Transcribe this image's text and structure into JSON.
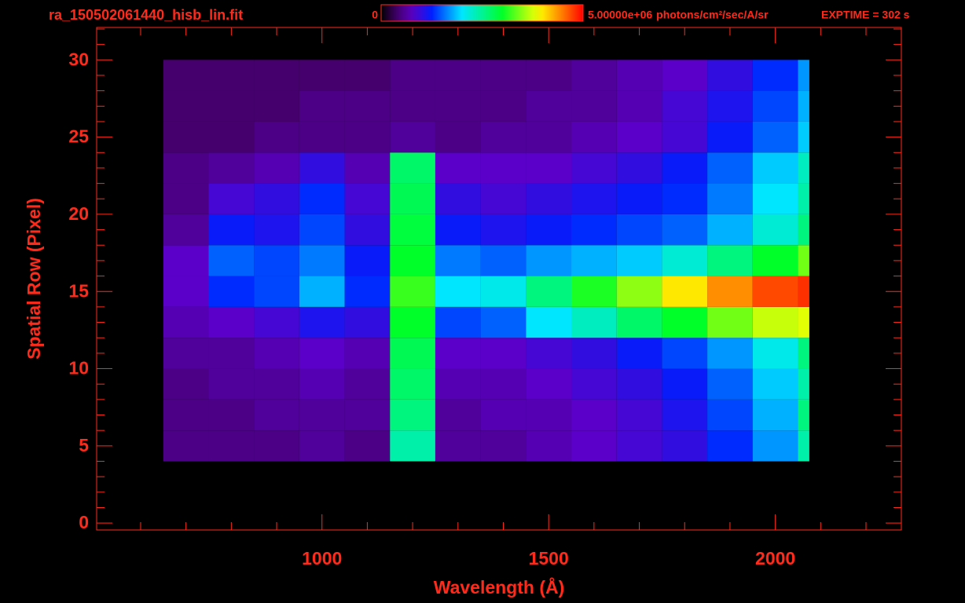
{
  "chart_data": {
    "type": "heatmap",
    "title": "ra_150502061440_hisb_lin.fit",
    "annotation": "EXPTIME = 302 s",
    "x_label": "Wavelength (Å)",
    "y_label": "Spatial Row (Pixel)",
    "axis_color": "#ff2a1a",
    "colormap": "rainbow",
    "colorbar": {
      "ticks": [
        0,
        {
          "value": 5000000,
          "label": "5.00000e+06"
        }
      ],
      "unit": "photons/cm²/sec/A/sr"
    },
    "x_bins": [
      650,
      750,
      850,
      950,
      1050,
      1150,
      1250,
      1350,
      1450,
      1550,
      1650,
      1750,
      1850,
      1950,
      2050,
      2075
    ],
    "y_bins": [
      4,
      6,
      8,
      10,
      12,
      14,
      16,
      18,
      20,
      22,
      24,
      26,
      28,
      30
    ],
    "values": [
      [
        500000,
        500000,
        500000,
        600000,
        500000,
        2400000,
        600000,
        600000,
        700000,
        800000,
        900000,
        1000000,
        1300000,
        1700000,
        2400000
      ],
      [
        500000,
        500000,
        600000,
        600000,
        600000,
        2600000,
        600000,
        700000,
        700000,
        800000,
        900000,
        1100000,
        1400000,
        1800000,
        2600000
      ],
      [
        500000,
        600000,
        600000,
        700000,
        600000,
        2700000,
        700000,
        700000,
        800000,
        900000,
        1000000,
        1200000,
        1500000,
        1900000,
        2400000
      ],
      [
        600000,
        600000,
        700000,
        800000,
        700000,
        2800000,
        800000,
        800000,
        900000,
        1000000,
        1200000,
        1400000,
        1700000,
        2100000,
        2600000
      ],
      [
        700000,
        800000,
        900000,
        1100000,
        1000000,
        3000000,
        1400000,
        1500000,
        2000000,
        2300000,
        2700000,
        3000000,
        3400000,
        3700000,
        3800000
      ],
      [
        800000,
        1300000,
        1400000,
        1800000,
        1300000,
        3200000,
        2000000,
        2100000,
        2600000,
        3100000,
        3500000,
        4000000,
        4400000,
        4700000,
        4800000
      ],
      [
        800000,
        1500000,
        1400000,
        1600000,
        1200000,
        3000000,
        1600000,
        1500000,
        1700000,
        1800000,
        1900000,
        2200000,
        2600000,
        3000000,
        3400000
      ],
      [
        600000,
        1200000,
        1100000,
        1400000,
        1000000,
        2900000,
        1200000,
        1100000,
        1200000,
        1300000,
        1400000,
        1500000,
        1800000,
        2200000,
        2600000
      ],
      [
        500000,
        900000,
        1000000,
        1300000,
        900000,
        2800000,
        1000000,
        900000,
        1000000,
        1100000,
        1200000,
        1300000,
        1600000,
        2000000,
        2400000
      ],
      [
        500000,
        600000,
        700000,
        1000000,
        700000,
        2700000,
        800000,
        800000,
        800000,
        900000,
        1000000,
        1200000,
        1500000,
        1900000,
        2300000
      ],
      [
        400000,
        400000,
        500000,
        500000,
        500000,
        600000,
        500000,
        600000,
        600000,
        700000,
        800000,
        900000,
        1200000,
        1500000,
        1900000
      ],
      [
        400000,
        400000,
        400000,
        500000,
        500000,
        500000,
        500000,
        500000,
        600000,
        600000,
        700000,
        900000,
        1100000,
        1400000,
        1800000
      ],
      [
        400000,
        400000,
        400000,
        400000,
        400000,
        500000,
        500000,
        500000,
        500000,
        600000,
        700000,
        800000,
        1000000,
        1300000,
        1700000
      ]
    ],
    "xlim": [
      503,
      2278
    ],
    "xticks": [
      1000,
      1500,
      2000
    ],
    "xminor_ticks": [
      600,
      700,
      800,
      900,
      1100,
      1200,
      1300,
      1400,
      1600,
      1700,
      1800,
      1900,
      2100,
      2200
    ],
    "ylim": [
      -0.45,
      32.1
    ],
    "yticks": [
      0,
      5,
      10,
      15,
      20,
      25,
      30
    ],
    "yminor_ticks": [
      1,
      2,
      3,
      4,
      6,
      7,
      8,
      9,
      11,
      12,
      13,
      14,
      16,
      17,
      18,
      19,
      21,
      22,
      23,
      24,
      26,
      27,
      28,
      29,
      31,
      32
    ]
  }
}
